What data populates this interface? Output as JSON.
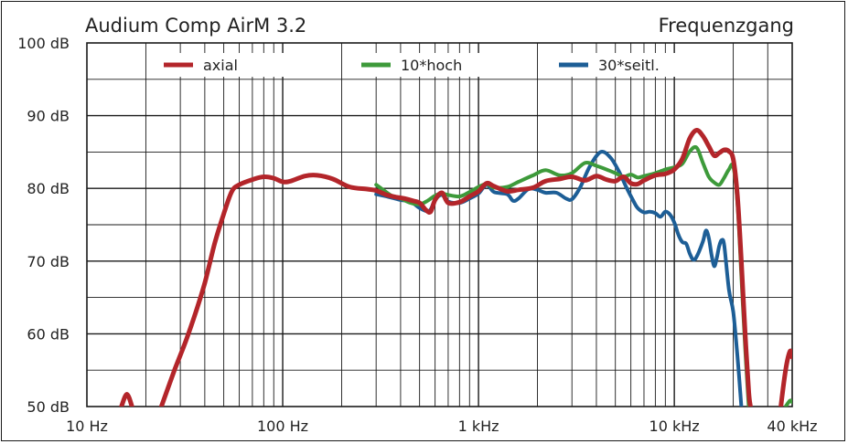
{
  "chart_data": {
    "type": "line",
    "title": "Audium Comp AirM 3.2",
    "subtitle": "Frequenzgang",
    "x_scale": "log",
    "xlim": [
      10,
      40000
    ],
    "ylim": [
      50,
      100
    ],
    "x_ticks": [
      10,
      100,
      1000,
      10000,
      40000
    ],
    "x_tick_labels": [
      "10 Hz",
      "100 Hz",
      "1 kHz",
      "10 kHz",
      "40 kHz"
    ],
    "y_ticks": [
      50,
      60,
      70,
      80,
      90,
      100
    ],
    "y_tick_labels": [
      "50 dB",
      "60 dB",
      "70 dB",
      "80 dB",
      "90 dB",
      "100 dB"
    ],
    "grid": true,
    "legend_position": "top",
    "series": [
      {
        "name": "axial",
        "color": "#b3252a",
        "points": [
          [
            15,
            50
          ],
          [
            16,
            51.7
          ],
          [
            17,
            50
          ],
          [
            24,
            50
          ],
          [
            28,
            55
          ],
          [
            32,
            59
          ],
          [
            36,
            63
          ],
          [
            40,
            67
          ],
          [
            45,
            72.5
          ],
          [
            50,
            76.5
          ],
          [
            55,
            79.6
          ],
          [
            60,
            80.5
          ],
          [
            70,
            81.2
          ],
          [
            80,
            81.6
          ],
          [
            90,
            81.4
          ],
          [
            100,
            80.9
          ],
          [
            110,
            81
          ],
          [
            130,
            81.7
          ],
          [
            150,
            81.8
          ],
          [
            180,
            81.3
          ],
          [
            220,
            80.2
          ],
          [
            270,
            79.9
          ],
          [
            300,
            79.7
          ],
          [
            340,
            79.1
          ],
          [
            380,
            78.8
          ],
          [
            420,
            78.6
          ],
          [
            460,
            78.3
          ],
          [
            500,
            78
          ],
          [
            540,
            77
          ],
          [
            570,
            76.8
          ],
          [
            600,
            78.4
          ],
          [
            650,
            79.4
          ],
          [
            700,
            78
          ],
          [
            800,
            78.1
          ],
          [
            900,
            78.9
          ],
          [
            1000,
            79.6
          ],
          [
            1100,
            80.7
          ],
          [
            1200,
            80.3
          ],
          [
            1400,
            79.6
          ],
          [
            1600,
            79.8
          ],
          [
            1900,
            80.1
          ],
          [
            2200,
            81
          ],
          [
            2600,
            81.3
          ],
          [
            3000,
            81.6
          ],
          [
            3500,
            81.1
          ],
          [
            4000,
            81.7
          ],
          [
            4500,
            81.2
          ],
          [
            5000,
            81
          ],
          [
            5500,
            81.6
          ],
          [
            6000,
            80.7
          ],
          [
            6500,
            80.6
          ],
          [
            7000,
            81.1
          ],
          [
            8000,
            81.8
          ],
          [
            9000,
            82
          ],
          [
            10000,
            82.6
          ],
          [
            11000,
            84.1
          ],
          [
            12000,
            86.9
          ],
          [
            13000,
            88
          ],
          [
            14000,
            87.2
          ],
          [
            15000,
            85.8
          ],
          [
            16000,
            84.5
          ],
          [
            17000,
            84.9
          ],
          [
            18000,
            85.3
          ],
          [
            19000,
            85.1
          ],
          [
            20000,
            84
          ],
          [
            21000,
            79
          ],
          [
            22000,
            70
          ],
          [
            23000,
            60
          ],
          [
            24000,
            52
          ],
          [
            24500,
            50
          ],
          [
            35000,
            50
          ],
          [
            37000,
            55
          ],
          [
            39000,
            57.6
          ],
          [
            40000,
            56.8
          ]
        ]
      },
      {
        "name": "10*hoch",
        "color": "#3d9a3a",
        "points": [
          [
            300,
            80.5
          ],
          [
            330,
            79.7
          ],
          [
            360,
            79
          ],
          [
            400,
            78.6
          ],
          [
            450,
            78
          ],
          [
            500,
            77.8
          ],
          [
            550,
            78.3
          ],
          [
            600,
            79
          ],
          [
            650,
            79.3
          ],
          [
            700,
            79.1
          ],
          [
            800,
            78.9
          ],
          [
            900,
            79.5
          ],
          [
            1000,
            80.2
          ],
          [
            1100,
            80.6
          ],
          [
            1200,
            80.1
          ],
          [
            1400,
            80.2
          ],
          [
            1600,
            80.9
          ],
          [
            1900,
            81.8
          ],
          [
            2200,
            82.5
          ],
          [
            2600,
            81.8
          ],
          [
            3000,
            82.1
          ],
          [
            3500,
            83.5
          ],
          [
            4000,
            83.1
          ],
          [
            4500,
            82.6
          ],
          [
            5000,
            82.1
          ],
          [
            5500,
            81.6
          ],
          [
            6000,
            81.9
          ],
          [
            6500,
            81.5
          ],
          [
            7000,
            81.7
          ],
          [
            8000,
            82.1
          ],
          [
            9000,
            82.6
          ],
          [
            10000,
            82.9
          ],
          [
            11000,
            83.4
          ],
          [
            12000,
            85.1
          ],
          [
            13000,
            85.6
          ],
          [
            14000,
            83.5
          ],
          [
            15000,
            81.6
          ],
          [
            16000,
            80.8
          ],
          [
            17000,
            80.5
          ],
          [
            18000,
            81.5
          ],
          [
            19000,
            82.6
          ],
          [
            20000,
            83
          ],
          [
            21000,
            78
          ],
          [
            22000,
            68
          ],
          [
            23000,
            58
          ],
          [
            24000,
            50
          ],
          [
            37000,
            50
          ],
          [
            39000,
            50.8
          ],
          [
            40000,
            50.6
          ]
        ]
      },
      {
        "name": "30*seitl.",
        "color": "#1d5e96",
        "points": [
          [
            300,
            79.2
          ],
          [
            350,
            78.8
          ],
          [
            400,
            78.4
          ],
          [
            450,
            78.2
          ],
          [
            500,
            77.3
          ],
          [
            560,
            76.9
          ],
          [
            600,
            78.4
          ],
          [
            650,
            79.1
          ],
          [
            700,
            78.2
          ],
          [
            800,
            78
          ],
          [
            900,
            78.6
          ],
          [
            1000,
            79.3
          ],
          [
            1100,
            80.5
          ],
          [
            1200,
            79.5
          ],
          [
            1400,
            79.2
          ],
          [
            1500,
            78.3
          ],
          [
            1600,
            78.6
          ],
          [
            1800,
            79.9
          ],
          [
            2000,
            79.8
          ],
          [
            2200,
            79.4
          ],
          [
            2500,
            79.4
          ],
          [
            2800,
            78.6
          ],
          [
            3000,
            78.5
          ],
          [
            3300,
            80.1
          ],
          [
            3700,
            83
          ],
          [
            4200,
            85
          ],
          [
            4700,
            84.3
          ],
          [
            5200,
            82.4
          ],
          [
            5700,
            80.1
          ],
          [
            6200,
            78.2
          ],
          [
            6500,
            77.3
          ],
          [
            7000,
            76.7
          ],
          [
            7500,
            76.8
          ],
          [
            8000,
            76.6
          ],
          [
            8500,
            76.1
          ],
          [
            9000,
            76.8
          ],
          [
            9500,
            76.4
          ],
          [
            10000,
            75.3
          ],
          [
            10500,
            73.6
          ],
          [
            11000,
            72.6
          ],
          [
            11500,
            72.4
          ],
          [
            12000,
            71
          ],
          [
            12500,
            70.2
          ],
          [
            13000,
            70.6
          ],
          [
            14000,
            72.7
          ],
          [
            14500,
            74.2
          ],
          [
            15000,
            73.2
          ],
          [
            15500,
            70.8
          ],
          [
            16000,
            69.3
          ],
          [
            16500,
            70.5
          ],
          [
            17000,
            72.2
          ],
          [
            17500,
            72.9
          ],
          [
            18000,
            72.1
          ],
          [
            19000,
            66.1
          ],
          [
            20000,
            63
          ],
          [
            21000,
            57
          ],
          [
            22000,
            50
          ]
        ]
      }
    ]
  }
}
